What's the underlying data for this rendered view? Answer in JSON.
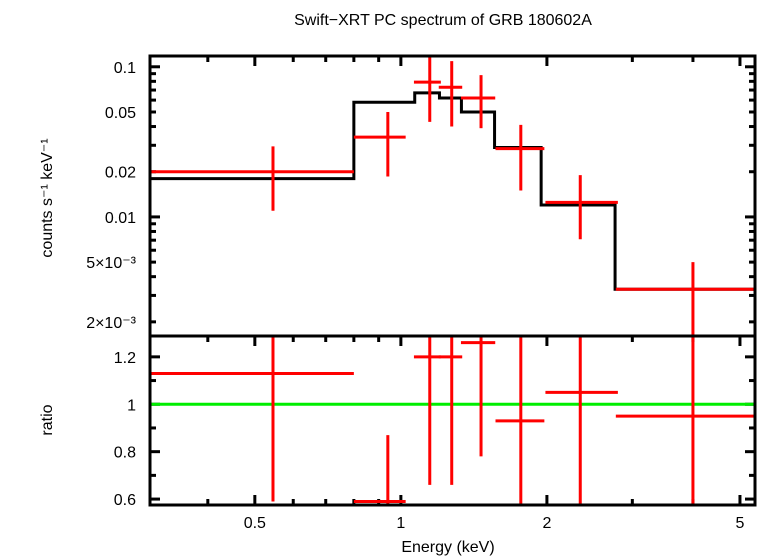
{
  "chart_data": [
    {
      "type": "line",
      "panel": "spectrum",
      "title": "Swift−XRT PC spectrum of GRB 180602A",
      "xlabel": "Energy (keV)",
      "ylabel": "counts s⁻¹ keV⁻¹",
      "xscale": "log",
      "yscale": "log",
      "xlim": [
        0.304,
        5.37
      ],
      "ylim": [
        0.00161,
        0.118
      ],
      "yticks": [
        {
          "value": 0.1,
          "label": "0.1"
        },
        {
          "value": 0.05,
          "label": "0.05"
        },
        {
          "value": 0.02,
          "label": "0.02"
        },
        {
          "value": 0.01,
          "label": "0.01"
        },
        {
          "value": 0.005,
          "label": "5×10⁻³"
        },
        {
          "value": 0.002,
          "label": "2×10⁻³"
        }
      ],
      "series": [
        {
          "name": "data",
          "color": "#ff0000",
          "style": "errorbars",
          "points": [
            {
              "x": 0.545,
              "xlo": 0.304,
              "xhi": 0.8,
              "y": 0.02,
              "ylo": 0.011,
              "yhi": 0.0295
            },
            {
              "x": 0.94,
              "xlo": 0.8,
              "xhi": 1.023,
              "y": 0.034,
              "ylo": 0.0186,
              "yhi": 0.05
            },
            {
              "x": 1.147,
              "xlo": 1.064,
              "xhi": 1.209,
              "y": 0.079,
              "ylo": 0.043,
              "yhi": 0.118
            },
            {
              "x": 1.273,
              "xlo": 1.197,
              "xhi": 1.338,
              "y": 0.073,
              "ylo": 0.04,
              "yhi": 0.109
            },
            {
              "x": 1.463,
              "xlo": 1.33,
              "xhi": 1.565,
              "y": 0.062,
              "ylo": 0.039,
              "yhi": 0.088
            },
            {
              "x": 1.767,
              "xlo": 1.567,
              "xhi": 1.976,
              "y": 0.0285,
              "ylo": 0.015,
              "yhi": 0.041
            },
            {
              "x": 2.343,
              "xlo": 1.986,
              "xhi": 2.801,
              "y": 0.0125,
              "ylo": 0.0071,
              "yhi": 0.019
            },
            {
              "x": 4.0,
              "xlo": 2.774,
              "xhi": 5.37,
              "y": 0.0033,
              "ylo": 0.0016,
              "yhi": 0.005
            }
          ]
        },
        {
          "name": "model",
          "color": "#000000",
          "style": "step",
          "steps": [
            {
              "xlo": 0.304,
              "xhi": 0.8,
              "y": 0.018
            },
            {
              "xlo": 0.8,
              "xhi": 1.068,
              "y": 0.058
            },
            {
              "xlo": 1.068,
              "xhi": 1.201,
              "y": 0.067
            },
            {
              "xlo": 1.201,
              "xhi": 1.333,
              "y": 0.062
            },
            {
              "xlo": 1.333,
              "xhi": 1.56,
              "y": 0.05
            },
            {
              "xlo": 1.56,
              "xhi": 1.946,
              "y": 0.029
            },
            {
              "xlo": 1.946,
              "xhi": 2.764,
              "y": 0.012
            },
            {
              "xlo": 2.764,
              "xhi": 5.37,
              "y": 0.0033
            }
          ]
        }
      ]
    },
    {
      "type": "line",
      "panel": "ratio",
      "xlabel": "Energy (keV)",
      "ylabel": "ratio",
      "xscale": "log",
      "yscale": "linear",
      "xlim": [
        0.304,
        5.37
      ],
      "ylim": [
        0.575,
        1.288
      ],
      "xticks": [
        {
          "value": 0.5,
          "label": "0.5"
        },
        {
          "value": 1,
          "label": "1"
        },
        {
          "value": 2,
          "label": "2"
        },
        {
          "value": 5,
          "label": "5"
        }
      ],
      "yticks": [
        {
          "value": 1.2,
          "label": "1.2"
        },
        {
          "value": 1.0,
          "label": "1"
        },
        {
          "value": 0.8,
          "label": "0.8"
        },
        {
          "value": 0.6,
          "label": "0.6"
        }
      ],
      "reference_line": {
        "y": 1.0,
        "color": "#00ee00"
      },
      "series": [
        {
          "name": "ratio",
          "color": "#ff0000",
          "style": "errorbars",
          "points": [
            {
              "x": 0.545,
              "xlo": 0.304,
              "xhi": 0.8,
              "y": 1.13,
              "ylo": 0.59,
              "yhi": 1.3
            },
            {
              "x": 0.94,
              "xlo": 0.8,
              "xhi": 1.023,
              "y": 0.59,
              "ylo": 0.57,
              "yhi": 0.87
            },
            {
              "x": 1.147,
              "xlo": 1.064,
              "xhi": 1.209,
              "y": 1.2,
              "ylo": 0.66,
              "yhi": 1.3
            },
            {
              "x": 1.273,
              "xlo": 1.197,
              "xhi": 1.338,
              "y": 1.2,
              "ylo": 0.66,
              "yhi": 1.3
            },
            {
              "x": 1.463,
              "xlo": 1.33,
              "xhi": 1.565,
              "y": 1.26,
              "ylo": 0.78,
              "yhi": 1.3
            },
            {
              "x": 1.767,
              "xlo": 1.567,
              "xhi": 1.976,
              "y": 0.93,
              "ylo": 0.57,
              "yhi": 1.3
            },
            {
              "x": 2.343,
              "xlo": 1.986,
              "xhi": 2.801,
              "y": 1.05,
              "ylo": 0.57,
              "yhi": 1.3
            },
            {
              "x": 4.0,
              "xlo": 2.774,
              "xhi": 5.37,
              "y": 0.95,
              "ylo": 0.57,
              "yhi": 1.3
            }
          ]
        }
      ]
    }
  ]
}
